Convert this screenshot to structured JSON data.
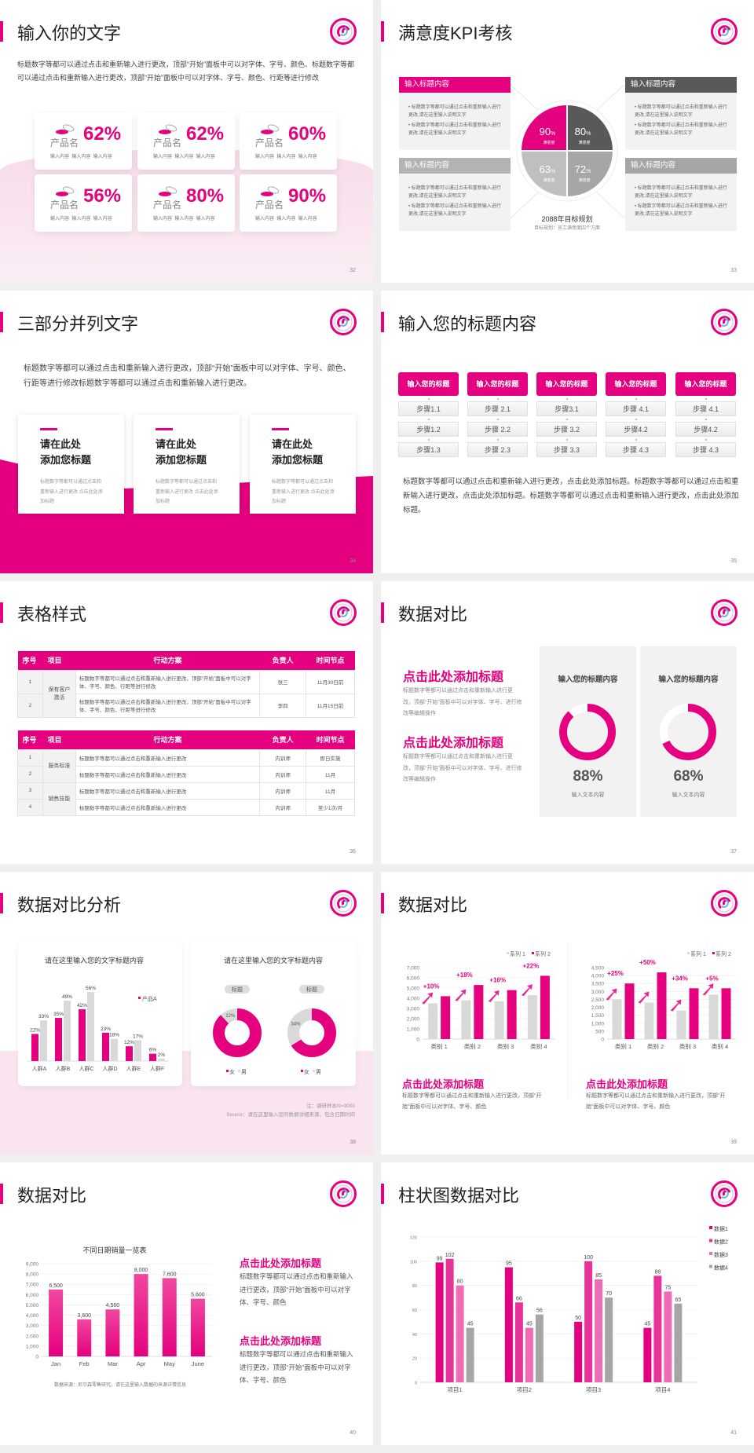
{
  "colors": {
    "accent": "#e5007f",
    "pink2": "#e8339a",
    "pink3": "#f06bb5",
    "dark": "#595959",
    "gray": "#a6a6a6",
    "mid_gray": "#b3b3b3",
    "light_gray": "#d9d9d9",
    "panel": "#f2f2f2"
  },
  "logo_icon": "school-emblem-logo",
  "s32": {
    "title": "输入你的文字",
    "page": "32",
    "paragraph": "标题数字等都可以通过点击和重新输入进行更改，顶部“开始”面板中可以对字体、字号、颜色、标题数字等都可以通过点击和重新输入进行更改，顶部“开始”面板中可以对字体、字号、颜色、行距等进行修改",
    "cards": [
      {
        "label": "产品名",
        "value": "62%",
        "sub": "输入内容  输入内容  输入内容"
      },
      {
        "label": "产品名",
        "value": "62%",
        "sub": "输入内容  输入内容  输入内容"
      },
      {
        "label": "产品名",
        "value": "60%",
        "sub": "输入内容  输入内容  输入内容"
      },
      {
        "label": "产品名",
        "value": "56%",
        "sub": "输入内容  输入内容  输入内容"
      },
      {
        "label": "产品名",
        "value": "80%",
        "sub": "输入内容  输入内容  输入内容"
      },
      {
        "label": "产品名",
        "value": "90%",
        "sub": "输入内容  输入内容  输入内容"
      }
    ],
    "card_icon": "pill-dish-icon"
  },
  "s33": {
    "title": "满意度KPI考核",
    "page": "33",
    "boxes": [
      {
        "header": "输入标题内容",
        "bullets": [
          "标题数字等都可以通过点击和重新输入进行更改,请在这里输入说明文字",
          "标题数字等都可以通过点击和重新输入进行更改,请在这里输入说明文字"
        ]
      },
      {
        "header": "输入标题内容",
        "bullets": [
          "标题数字等都可以通过点击和重新输入进行更改,请在这里输入说明文字",
          "标题数字等都可以通过点击和重新输入进行更改,请在这里输入说明文字"
        ]
      },
      {
        "header": "输入标题内容",
        "bullets": [
          "标题数字等都可以通过点击和重新输入进行更改,请在这里输入说明文字",
          "标题数字等都可以通过点击和重新输入进行更改,请在这里输入说明文字"
        ]
      },
      {
        "header": "输入标题内容",
        "bullets": [
          "标题数字等都可以通过点击和重新输入进行更改,请在这里输入说明文字",
          "标题数字等都可以通过点击和重新输入进行更改,请在这里输入说明文字"
        ]
      }
    ],
    "kpi": [
      {
        "value": "90",
        "unit": "%",
        "label": "满意度"
      },
      {
        "value": "80",
        "unit": "%",
        "label": "满意度"
      },
      {
        "value": "63",
        "unit": "%",
        "label": "满意度"
      },
      {
        "value": "72",
        "unit": "%",
        "label": "满意度"
      }
    ],
    "center_title": "2088年目标规划",
    "center_sub": "目标规划：员工满意度四个方面"
  },
  "s34": {
    "title": "三部分并列文字",
    "page": "34",
    "paragraph": "标题数字等都可以通过点击和重新输入进行更改，顶部“开始”面板中可以对字体、字号、颜色、行距等进行修改标题数字等都可以通过点击和重新输入进行更改。",
    "cards": [
      {
        "title_lines": [
          "请在此处",
          "添加您标题"
        ],
        "body": "标题数字等都可以通过点击和重新输入进行更改 点击此处添加标题"
      },
      {
        "title_lines": [
          "请在此处",
          "添加您标题"
        ],
        "body": "标题数字等都可以通过点击和重新输入进行更改 点击此处添加标题"
      },
      {
        "title_lines": [
          "请在此处",
          "添加您标题"
        ],
        "body": "标题数字等都可以通过点击和重新输入进行更改 点击此处添加标题"
      }
    ]
  },
  "s35": {
    "title": "输入您的标题内容",
    "page": "35",
    "columns": [
      {
        "header": "输入您的标题",
        "steps": [
          "步骤1.1",
          "步骤1.2",
          "步骤1.3"
        ]
      },
      {
        "header": "输入您的标题",
        "steps": [
          "步骤 2.1",
          "步骤 2.2",
          "步骤 2.3"
        ]
      },
      {
        "header": "输入您的标题",
        "steps": [
          "步骤3.1",
          "步骤 3.2",
          "步骤 3.3"
        ]
      },
      {
        "header": "输入您的标题",
        "steps": [
          "步骤 4.1",
          "步骤4.2",
          "步骤 4.3"
        ]
      },
      {
        "header": "输入您的标题",
        "steps": [
          "步骤 4.1",
          "步骤4.2",
          "步骤 4.3"
        ]
      }
    ],
    "paragraph": "标题数字等都可以通过点击和重新输入进行更改，点击此处添加标题。标题数字等都可以通过点击和重新输入进行更改，点击此处添加标题。标题数字等都可以通过点击和重新输入进行更改，点击此处添加标题。"
  },
  "s36": {
    "title": "表格样式",
    "page": "36",
    "tables": [
      {
        "headers": [
          "序号",
          "项目",
          "行动方案",
          "负责人",
          "时间节点"
        ],
        "groups": [
          {
            "project": "保有客户激活",
            "rows": [
              [
                "1",
                "标题数字等都可以通过点击和重新输入进行更改，顶部“开始”面板中可以对字体、字号、颜色、行距等进行修改",
                "张三",
                "11月30日前"
              ],
              [
                "2",
                "标题数字等都可以通过点击和重新输入进行更改，顶部“开始”面板中可以对字体、字号、颜色、行距等进行修改",
                "李四",
                "11月15日前"
              ]
            ]
          }
        ]
      },
      {
        "headers": [
          "序号",
          "项目",
          "行动方案",
          "负责人",
          "时间节点"
        ],
        "groups": [
          {
            "project": "服务标准",
            "rows": [
              [
                "1",
                "标题数字等都可以通过点击和重新输入进行更改",
                "内训师",
                "即日实施"
              ],
              [
                "2",
                "标题数字等都可以通过点击和重新输入进行更改",
                "内训师",
                "11月"
              ]
            ]
          },
          {
            "project": "销售技能",
            "rows": [
              [
                "3",
                "标题数字等都可以通过点击和重新输入进行更改",
                "内训师",
                "11月"
              ],
              [
                "4",
                "标题数字等都可以通过点击和重新输入进行更改",
                "内训师",
                "至少1次/月"
              ]
            ]
          }
        ]
      }
    ]
  },
  "s37": {
    "title": "数据对比",
    "page": "37",
    "sections": [
      {
        "heading": "点击此处添加标题",
        "body": "标题数字等都可以通过点击和重新输入进行更改，顶部“开始”面板中可以对字体、字号、进行修改等编辑操作"
      },
      {
        "heading": "点击此处添加标题",
        "body": "标题数字等都可以通过点击和重新输入进行更改，顶部“开始”面板中可以对字体、字号、进行修改等编辑操作"
      }
    ],
    "panels": [
      {
        "title": "输入您的标题内容",
        "value": 88,
        "value_label": "88%",
        "caption": "输入文本内容"
      },
      {
        "title": "输入您的标题内容",
        "value": 68,
        "value_label": "68%",
        "caption": "输入文本内容"
      }
    ]
  },
  "s38": {
    "title": "数据对比分析",
    "page": "38",
    "note": "注：调研样本N=9000",
    "source": "Source：请在这里输入您的数据详细来源，包含日期时间"
  },
  "s39": {
    "title": "数据对比",
    "page": "39",
    "sections": [
      {
        "heading": "点击此处添加标题",
        "body": "标题数字等都可以通过点击和重新输入进行更改，顶部“开始”面板中可以对字体、字号、颜色"
      },
      {
        "heading": "点击此处添加标题",
        "body": "标题数字等都可以通过点击和重新输入进行更改，顶部“开始”面板中可以对字体、字号、颜色"
      }
    ]
  },
  "s40": {
    "title": "数据对比",
    "page": "40",
    "sections": [
      {
        "heading": "点击此处添加标题",
        "body": "标题数字等都可以通过点击和重新输入进行更改，顶部“开始”面板中可以对字体、字号、颜色"
      },
      {
        "heading": "点击此处添加标题",
        "body": "标题数字等都可以通过点击和重新输入进行更改，顶部“开始”面板中可以对字体、字号、颜色"
      }
    ]
  },
  "s41": {
    "title": "柱状图数据对比",
    "page": "41"
  },
  "chart_data": [
    {
      "type": "bar",
      "title": "请在这里输入您的文字标题内容",
      "categories": [
        "人群A",
        "人群B",
        "人群C",
        "人群D",
        "人群E",
        "人群F"
      ],
      "series": [
        {
          "name": "产品A",
          "values": [
            22,
            35,
            42,
            23,
            12,
            6
          ]
        },
        {
          "values": [
            33,
            49,
            56,
            18,
            17,
            2
          ]
        }
      ],
      "value_suffix": "%",
      "legend": "top-right",
      "grid": false
    },
    {
      "type": "pie",
      "title": "请在这里输入您的文字标题内容",
      "legend": [
        "女",
        "男"
      ],
      "charts": [
        {
          "label": "标题",
          "values": [
            88,
            12
          ],
          "labels": [
            "88%",
            "12%"
          ]
        },
        {
          "label": "标题",
          "values": [
            66,
            34
          ],
          "labels": [
            "66%",
            "34%"
          ]
        }
      ]
    },
    {
      "type": "bar",
      "legend_entries": [
        "系列 1",
        "系列 2"
      ],
      "legend": "top-right",
      "categories": [
        "类别 1",
        "类别 2",
        "类别 3",
        "类别 4"
      ],
      "series": [
        {
          "name": "系列 1",
          "values": [
            3500,
            3800,
            3700,
            4300
          ]
        },
        {
          "name": "系列 2",
          "values": [
            4200,
            5300,
            4800,
            6200
          ]
        }
      ],
      "annotations": [
        "+10%",
        "+18%",
        "+16%",
        "+22%"
      ],
      "ylim": [
        0,
        7000
      ],
      "yticks": [
        0,
        1000,
        2000,
        3000,
        4000,
        5000,
        6000,
        7000
      ],
      "grid": true
    },
    {
      "type": "bar",
      "legend_entries": [
        "系列 1",
        "系列 2"
      ],
      "legend": "top-right",
      "categories": [
        "类别 1",
        "类别 2",
        "类别 3",
        "类别 4"
      ],
      "series": [
        {
          "name": "系列 1",
          "values": [
            2500,
            2300,
            1800,
            2800
          ]
        },
        {
          "name": "系列 2",
          "values": [
            3500,
            4200,
            3200,
            3200
          ]
        }
      ],
      "annotations": [
        "+25%",
        "+50%",
        "+34%",
        "+5%"
      ],
      "ylim": [
        0,
        4500
      ],
      "yticks": [
        0,
        500,
        1000,
        1500,
        2000,
        2500,
        3000,
        3500,
        4000,
        4500
      ],
      "grid": true
    },
    {
      "type": "bar",
      "title": "不同日期销量一览表",
      "categories": [
        "Jan",
        "Feb",
        "Mar",
        "Apr",
        "May",
        "June"
      ],
      "series": [
        {
          "values": [
            6500,
            3600,
            4560,
            8000,
            7600,
            5600
          ]
        }
      ],
      "ylim": [
        0,
        9000
      ],
      "yticks": [
        0,
        1000,
        2000,
        3000,
        4000,
        5000,
        6000,
        7000,
        8000,
        9000
      ],
      "source": "数据来源：尼尔森零售研究，请在这里输入数据的来源详情信息",
      "grid": true
    },
    {
      "type": "bar",
      "categories": [
        "项目1",
        "项目2",
        "项目3",
        "项目4"
      ],
      "series": [
        {
          "name": "数据1",
          "values": [
            99,
            95,
            50,
            45
          ]
        },
        {
          "name": "数据2",
          "values": [
            102,
            66,
            100,
            88
          ]
        },
        {
          "name": "数据3",
          "values": [
            80,
            45,
            85,
            75
          ]
        },
        {
          "name": "数据4",
          "values": [
            45,
            56,
            70,
            65
          ]
        }
      ],
      "ylim": [
        0,
        120
      ],
      "yticks": [
        0,
        20,
        40,
        60,
        80,
        100,
        120
      ],
      "legend": "right",
      "grid": true
    }
  ]
}
